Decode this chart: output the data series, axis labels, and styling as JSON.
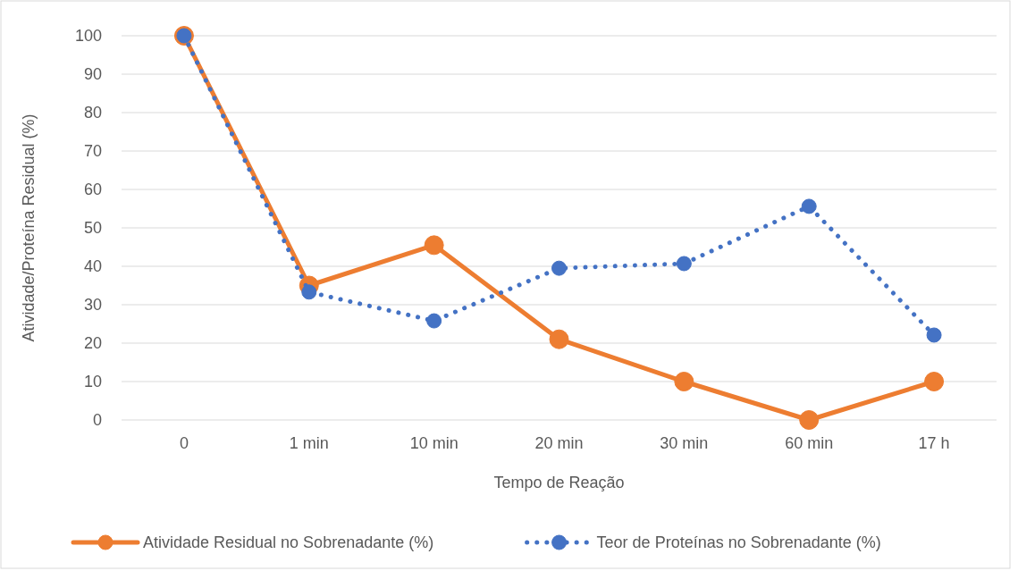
{
  "chart_data": {
    "type": "line",
    "xlabel": "Tempo de Reação",
    "ylabel": "Atividade/Proteína Residual (%)",
    "categories": [
      "0",
      "1 min",
      "10 min",
      "20 min",
      "30 min",
      "60 min",
      "17 h"
    ],
    "series": [
      {
        "name": "Atividade Residual no Sobrenadante (%)",
        "color": "#ed7d31",
        "line_style": "solid",
        "values": [
          100,
          35,
          45.5,
          21,
          10,
          0,
          10
        ]
      },
      {
        "name": "Teor de Proteínas no Sobrenadante (%)",
        "color": "#4472c4",
        "line_style": "dotted",
        "values": [
          100,
          33.3,
          25.8,
          39.5,
          40.7,
          55.6,
          22.1
        ]
      }
    ],
    "ylim": [
      0,
      100
    ],
    "yticks": [
      0,
      10,
      20,
      30,
      40,
      50,
      60,
      70,
      80,
      90,
      100
    ],
    "grid": "y",
    "legend": "bottom",
    "marker": "circle"
  }
}
